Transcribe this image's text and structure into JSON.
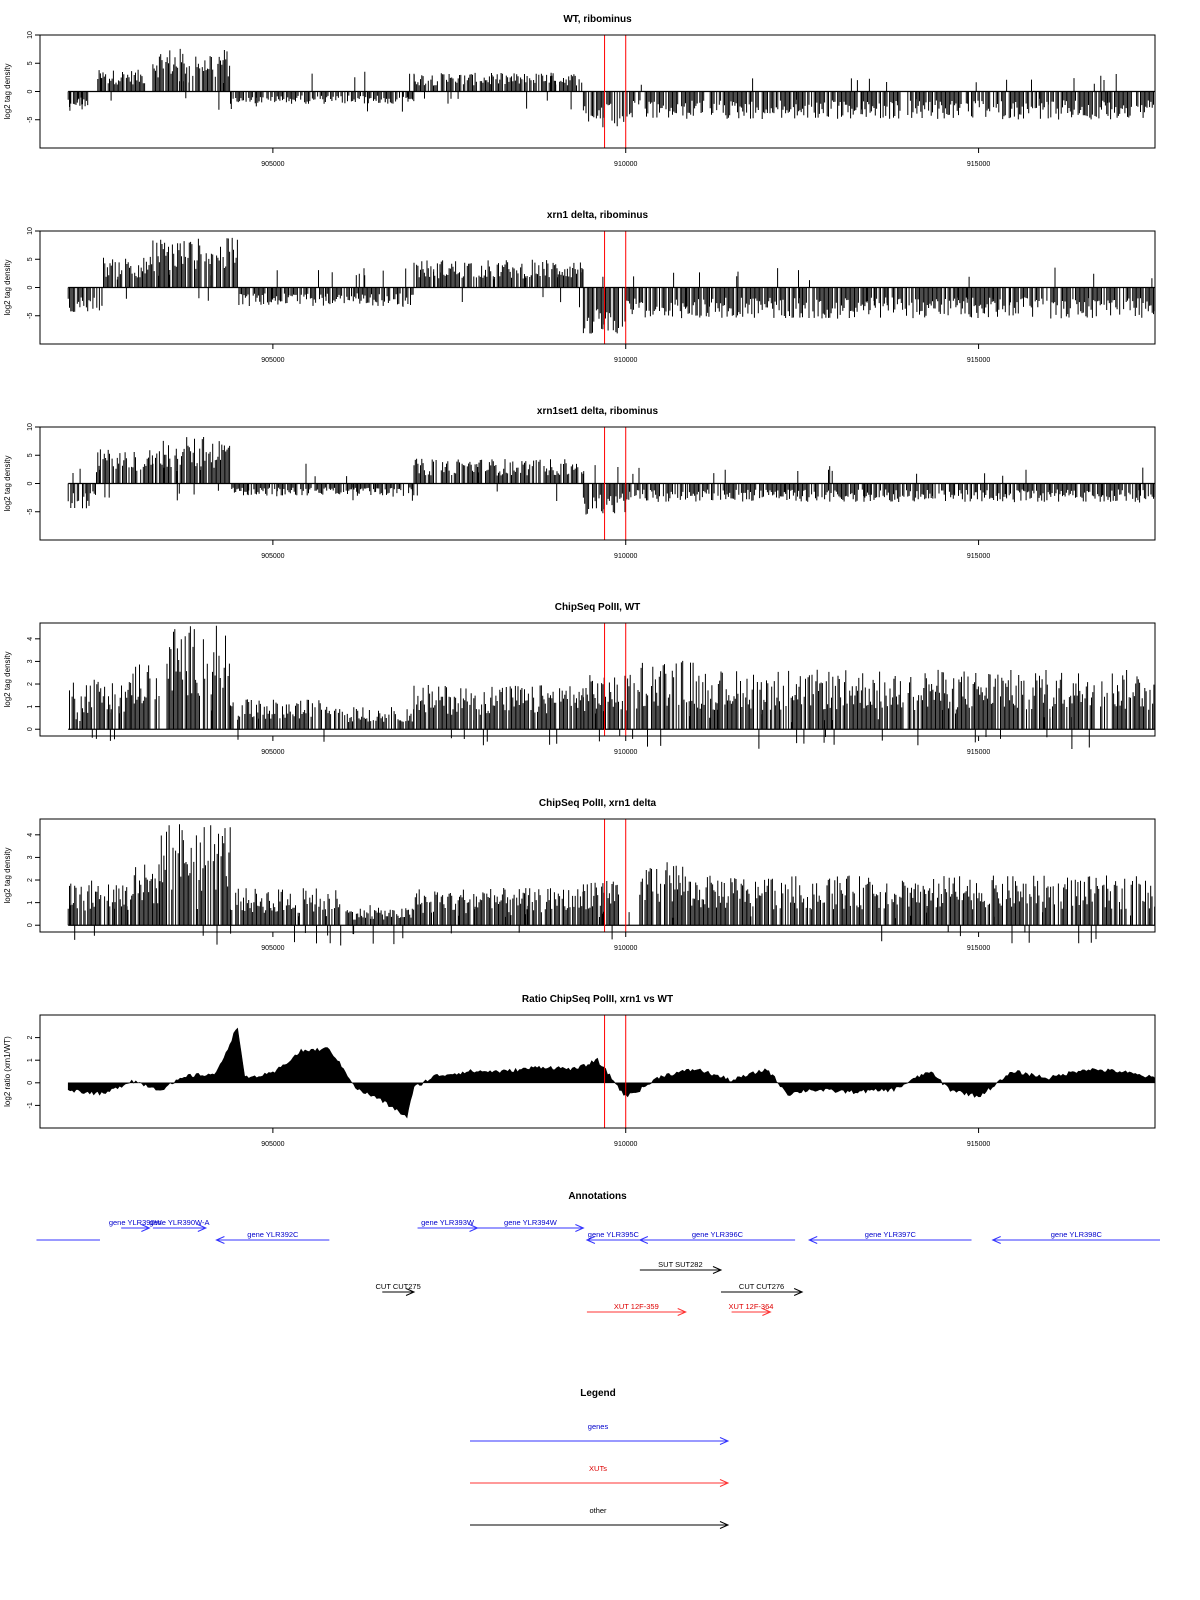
{
  "chart_data": [
    {
      "type": "bar",
      "title": "WT, ribominus",
      "ylabel": "log2 tag density",
      "xlim": [
        901700,
        917500
      ],
      "ylim": [
        -10,
        10
      ],
      "yticks": [
        "-5",
        "0",
        "5",
        "10"
      ],
      "xticks": [
        "905000",
        "910000",
        "915000"
      ],
      "markers": [
        909700,
        910000
      ],
      "marker_color": "#ff0000",
      "segments": [
        {
          "start": 902100,
          "end": 902400,
          "amp": 2.5,
          "sign": -1
        },
        {
          "start": 902500,
          "end": 903200,
          "amp": 3.5,
          "sign": 1
        },
        {
          "start": 903300,
          "end": 904400,
          "amp": 7.0,
          "sign": 1
        },
        {
          "start": 904400,
          "end": 907000,
          "amp": 2.0,
          "sign": -1
        },
        {
          "start": 907000,
          "end": 909400,
          "amp": 3.0,
          "sign": 1
        },
        {
          "start": 909400,
          "end": 910000,
          "amp": 6.0,
          "sign": -1
        },
        {
          "start": 910000,
          "end": 917500,
          "amp": 4.5,
          "sign": -1
        }
      ]
    },
    {
      "type": "bar",
      "title": "xrn1 delta, ribominus",
      "ylabel": "log2 tag density",
      "xlim": [
        901700,
        917500
      ],
      "ylim": [
        -10,
        10
      ],
      "yticks": [
        "-5",
        "0",
        "5",
        "10"
      ],
      "xticks": [
        "905000",
        "910000",
        "915000"
      ],
      "markers": [
        909700,
        910000
      ],
      "marker_color": "#ff0000",
      "segments": [
        {
          "start": 902100,
          "end": 902600,
          "amp": 4.0,
          "sign": -1
        },
        {
          "start": 902600,
          "end": 903300,
          "amp": 5.0,
          "sign": 1
        },
        {
          "start": 903300,
          "end": 904500,
          "amp": 8.0,
          "sign": 1
        },
        {
          "start": 904500,
          "end": 907000,
          "amp": 3.0,
          "sign": -1
        },
        {
          "start": 907000,
          "end": 909400,
          "amp": 4.5,
          "sign": 1
        },
        {
          "start": 909400,
          "end": 910000,
          "amp": 7.5,
          "sign": -1
        },
        {
          "start": 910000,
          "end": 917500,
          "amp": 5.0,
          "sign": -1
        }
      ]
    },
    {
      "type": "bar",
      "title": "xrn1set1 delta, ribominus",
      "ylabel": "log2 tag density",
      "xlim": [
        901700,
        917500
      ],
      "ylim": [
        -10,
        10
      ],
      "yticks": [
        "-5",
        "0",
        "5",
        "10"
      ],
      "xticks": [
        "905000",
        "910000",
        "915000"
      ],
      "markers": [
        909700,
        910000
      ],
      "marker_color": "#ff0000",
      "segments": [
        {
          "start": 902100,
          "end": 902500,
          "amp": 4.0,
          "sign": -1
        },
        {
          "start": 902500,
          "end": 903300,
          "amp": 5.5,
          "sign": 1
        },
        {
          "start": 903300,
          "end": 904400,
          "amp": 7.5,
          "sign": 1
        },
        {
          "start": 904400,
          "end": 907000,
          "amp": 2.0,
          "sign": -1
        },
        {
          "start": 907000,
          "end": 909400,
          "amp": 4.0,
          "sign": 1
        },
        {
          "start": 909400,
          "end": 910000,
          "amp": 5.0,
          "sign": -1
        },
        {
          "start": 910000,
          "end": 917500,
          "amp": 3.0,
          "sign": -1
        }
      ]
    },
    {
      "type": "bar",
      "title": "ChipSeq PolII, WT",
      "ylabel": "log2 tag density",
      "xlim": [
        901700,
        917500
      ],
      "ylim": [
        -0.3,
        4.7
      ],
      "yticks": [
        "0",
        "1",
        "2",
        "3",
        "4"
      ],
      "xticks": [
        "905000",
        "910000",
        "915000"
      ],
      "markers": [
        909700,
        910000
      ],
      "marker_color": "#ff0000",
      "segments": [
        {
          "start": 902100,
          "end": 903000,
          "amp": 2.0,
          "sign": 1
        },
        {
          "start": 903000,
          "end": 903400,
          "amp": 2.8,
          "sign": 1
        },
        {
          "start": 903500,
          "end": 904400,
          "amp": 4.2,
          "sign": 1
        },
        {
          "start": 904400,
          "end": 906000,
          "amp": 1.2,
          "sign": 1
        },
        {
          "start": 906000,
          "end": 907000,
          "amp": 0.9,
          "sign": 1
        },
        {
          "start": 907000,
          "end": 909400,
          "amp": 1.8,
          "sign": 1
        },
        {
          "start": 909400,
          "end": 910200,
          "amp": 2.2,
          "sign": 1
        },
        {
          "start": 910200,
          "end": 911000,
          "amp": 2.8,
          "sign": 1
        },
        {
          "start": 911000,
          "end": 917500,
          "amp": 2.4,
          "sign": 1
        }
      ]
    },
    {
      "type": "bar",
      "title": "ChipSeq PolII, xrn1 delta",
      "ylabel": "log2 tag density",
      "xlim": [
        901700,
        917500
      ],
      "ylim": [
        -0.3,
        4.7
      ],
      "yticks": [
        "0",
        "1",
        "2",
        "3",
        "4"
      ],
      "xticks": [
        "905000",
        "910000",
        "915000"
      ],
      "markers": [
        909700,
        910000
      ],
      "marker_color": "#ff0000",
      "segments": [
        {
          "start": 902100,
          "end": 903000,
          "amp": 1.8,
          "sign": 1
        },
        {
          "start": 903000,
          "end": 903400,
          "amp": 2.5,
          "sign": 1
        },
        {
          "start": 903400,
          "end": 904400,
          "amp": 4.2,
          "sign": 1
        },
        {
          "start": 904400,
          "end": 906000,
          "amp": 1.5,
          "sign": 1
        },
        {
          "start": 906000,
          "end": 907000,
          "amp": 0.7,
          "sign": 1
        },
        {
          "start": 907000,
          "end": 909400,
          "amp": 1.5,
          "sign": 1
        },
        {
          "start": 909400,
          "end": 909900,
          "amp": 2.0,
          "sign": 1
        },
        {
          "start": 910200,
          "end": 910900,
          "amp": 2.6,
          "sign": 1
        },
        {
          "start": 910900,
          "end": 917500,
          "amp": 2.0,
          "sign": 1
        }
      ]
    },
    {
      "type": "area",
      "title": "Ratio ChipSeq PolII, xrn1 vs WT",
      "ylabel": "log2 ratio (xrn1/WT)",
      "xlim": [
        901700,
        917500
      ],
      "ylim": [
        -2,
        3
      ],
      "yticks": [
        "-1",
        "0",
        "1",
        "2"
      ],
      "xticks": [
        "905000",
        "910000",
        "915000"
      ],
      "markers": [
        909700,
        910000
      ],
      "marker_color": "#ff0000",
      "x": [
        902100,
        902600,
        903000,
        903400,
        903800,
        904200,
        904500,
        904600,
        905000,
        905400,
        905800,
        906200,
        906500,
        906900,
        907000,
        907300,
        907800,
        908300,
        908800,
        909300,
        909600,
        910000,
        910200,
        910500,
        911000,
        911500,
        912000,
        912300,
        912600,
        913200,
        913800,
        914300,
        914600,
        915000,
        915500,
        916000,
        916500,
        917000,
        917500
      ],
      "y": [
        -0.3,
        -0.5,
        0.1,
        -0.3,
        0.3,
        0.4,
        2.5,
        0.2,
        0.4,
        1.4,
        1.5,
        -0.3,
        -0.7,
        -1.5,
        -0.2,
        0.3,
        0.5,
        0.5,
        0.7,
        0.6,
        1.0,
        -0.6,
        -0.3,
        0.3,
        0.6,
        0.1,
        0.6,
        -0.5,
        -0.3,
        -0.4,
        -0.3,
        0.5,
        -0.3,
        -0.6,
        0.5,
        0.2,
        0.6,
        0.5,
        0.2
      ]
    }
  ],
  "annotations": {
    "title": "Annotations",
    "xlim": [
      901700,
      917500
    ],
    "tracks": [
      {
        "label": "",
        "start": 901650,
        "end": 902550,
        "strand": "none",
        "kind": "gene",
        "row": 1
      },
      {
        "label": "gene YLR390W",
        "start": 902850,
        "end": 903250,
        "strand": "+",
        "kind": "gene",
        "row": 0
      },
      {
        "label": "gene YLR390W-A",
        "start": 903300,
        "end": 904050,
        "strand": "+",
        "kind": "gene",
        "row": 0
      },
      {
        "label": "gene YLR392C",
        "start": 904200,
        "end": 905800,
        "strand": "-",
        "kind": "gene",
        "row": 1
      },
      {
        "label": "gene YLR393W",
        "start": 907050,
        "end": 907900,
        "strand": "+",
        "kind": "gene",
        "row": 0
      },
      {
        "label": "gene YLR394W",
        "start": 907900,
        "end": 909400,
        "strand": "+",
        "kind": "gene",
        "row": 0
      },
      {
        "label": "gene YLR395C",
        "start": 909450,
        "end": 910200,
        "strand": "-",
        "kind": "gene",
        "row": 1
      },
      {
        "label": "gene YLR396C",
        "start": 910200,
        "end": 912400,
        "strand": "-",
        "kind": "gene",
        "row": 1
      },
      {
        "label": "gene YLR397C",
        "start": 912600,
        "end": 914900,
        "strand": "-",
        "kind": "gene",
        "row": 1
      },
      {
        "label": "gene YLR398C",
        "start": 915200,
        "end": 917600,
        "strand": "-",
        "kind": "gene",
        "row": 1
      },
      {
        "label": "SUT SUT282",
        "start": 910200,
        "end": 911350,
        "strand": "+",
        "kind": "other",
        "row": 2
      },
      {
        "label": "CUT CUT275",
        "start": 906550,
        "end": 907000,
        "strand": "+",
        "kind": "other",
        "row": 3
      },
      {
        "label": "CUT CUT276",
        "start": 911350,
        "end": 912500,
        "strand": "+",
        "kind": "other",
        "row": 3
      },
      {
        "label": "XUT 12F-359",
        "start": 909450,
        "end": 910850,
        "strand": "+",
        "kind": "xut",
        "row": 4
      },
      {
        "label": "XUT 12F-364",
        "start": 911500,
        "end": 912050,
        "strand": "+",
        "kind": "xut",
        "row": 4
      }
    ]
  },
  "legend": {
    "title": "Legend",
    "items": [
      {
        "label": "genes",
        "color": "#3333ff",
        "label_color": "#0000cc"
      },
      {
        "label": "XUTs",
        "color": "#ff3333",
        "label_color": "#dd0000"
      },
      {
        "label": "other",
        "color": "#000000",
        "label_color": "#000000"
      }
    ]
  },
  "colors": {
    "gene": "#3333ff",
    "gene_text": "#0000cc",
    "xut": "#ff3333",
    "xut_text": "#dd0000",
    "other": "#000000",
    "bar": "#000000"
  }
}
